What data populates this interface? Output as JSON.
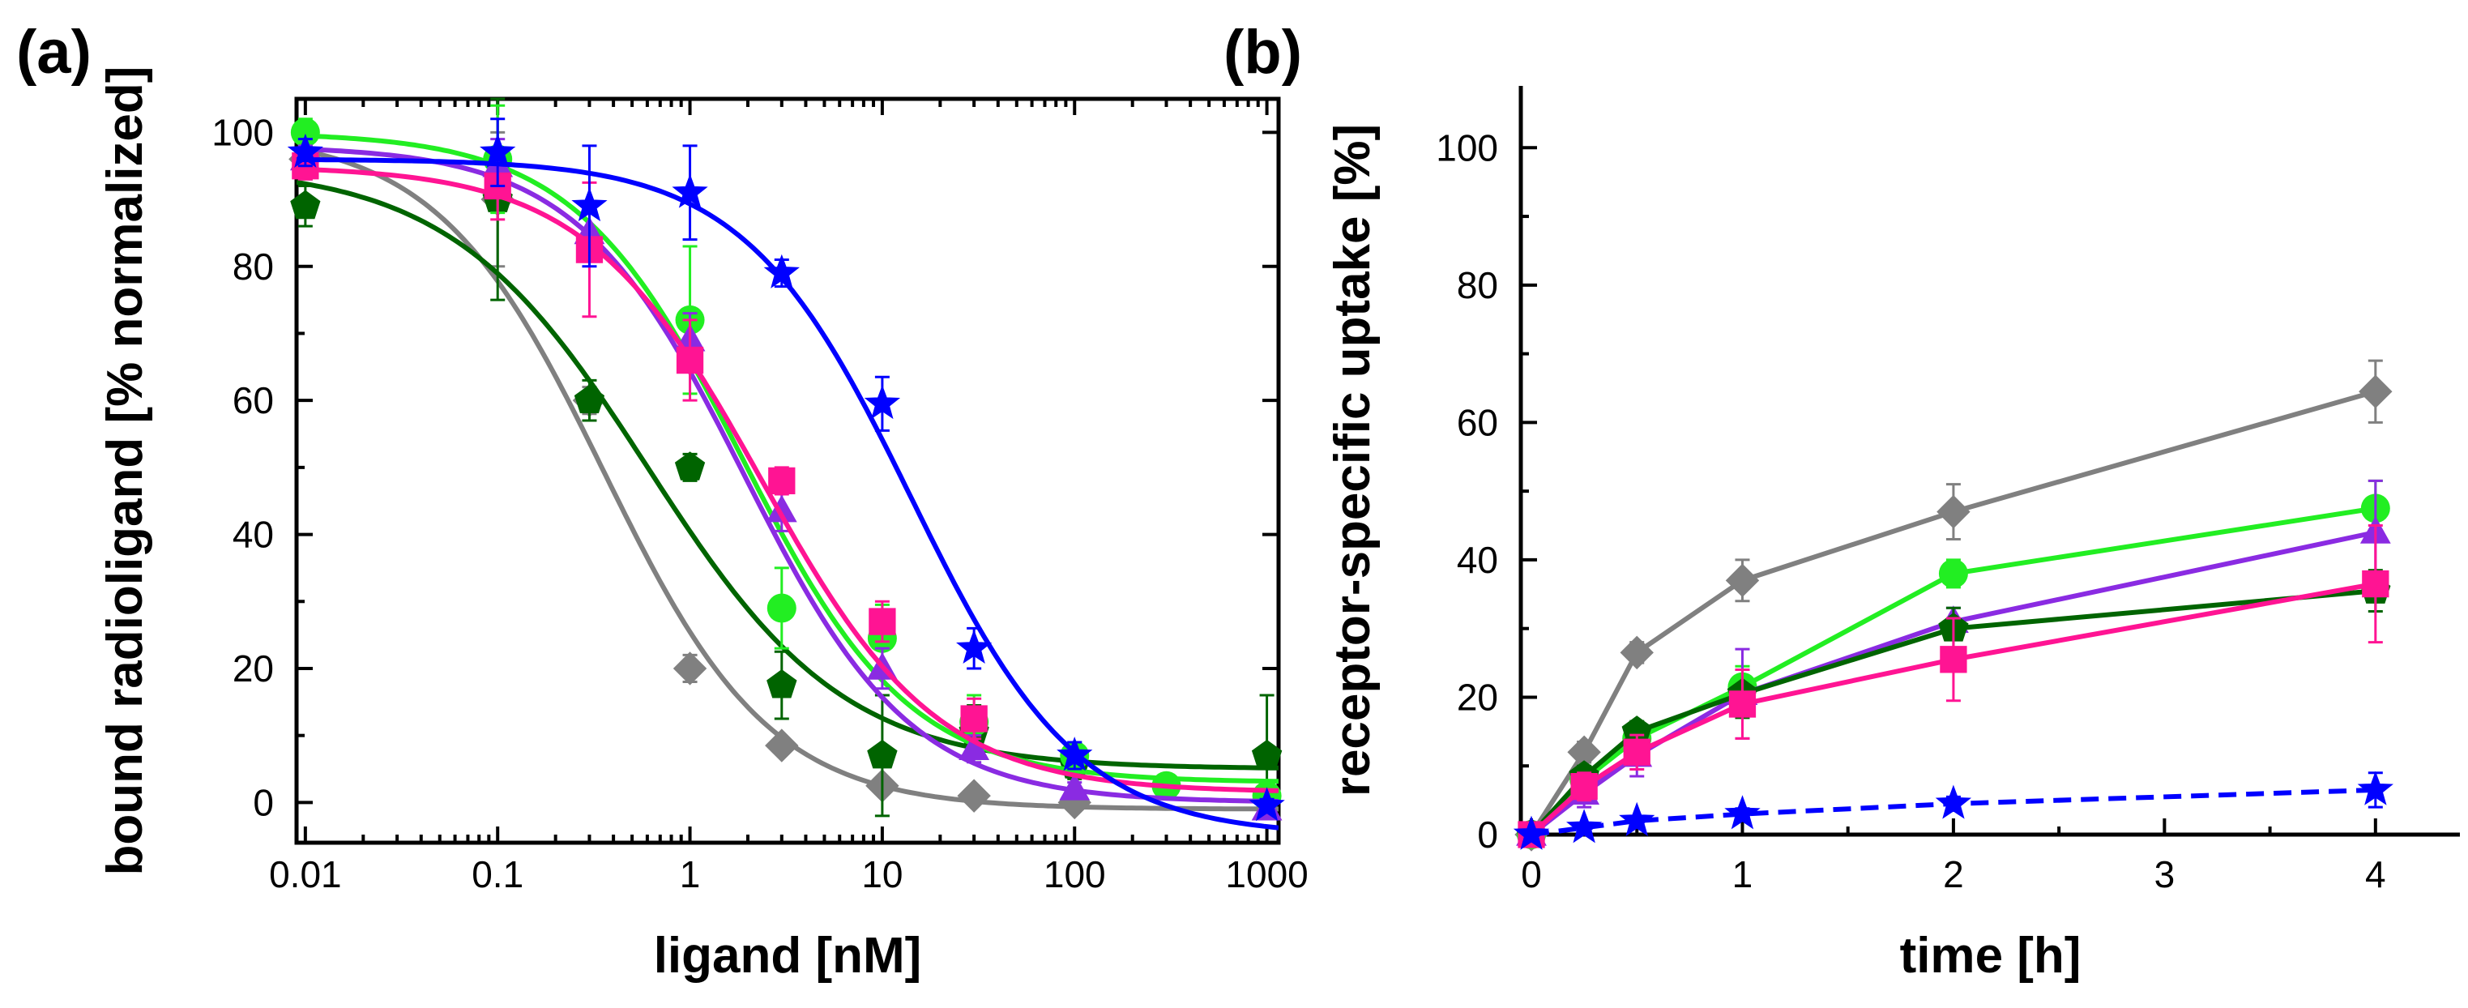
{
  "chart_data": [
    {
      "panel_label": "(a)",
      "type": "scatter",
      "title": "",
      "xlabel": "ligand [nM]",
      "ylabel": "bound radioligand [% normalized]",
      "xscale": "log",
      "xlim": [
        0.009,
        1150
      ],
      "ylim": [
        -6,
        105
      ],
      "xticks": [
        0.01,
        0.1,
        1,
        10,
        100,
        1000
      ],
      "xtick_labels": [
        "0.01",
        "0.1",
        "1",
        "10",
        "100",
        "1000"
      ],
      "yticks": [
        0,
        20,
        40,
        60,
        80,
        100
      ],
      "ytick_labels": [
        "0",
        "20",
        "40",
        "60",
        "80",
        "100"
      ],
      "grid": false,
      "legend": "none",
      "fit": "sigmoidal dose-response curves",
      "series": [
        {
          "name": "gray",
          "color": "#808080",
          "marker": "diamond",
          "x": [
            0.01,
            0.1,
            0.3,
            1,
            3,
            10,
            30,
            100
          ],
          "y": [
            96,
            90,
            60,
            20,
            8.5,
            2.5,
            1,
            0
          ],
          "err": [
            3,
            10,
            2,
            2,
            1,
            1,
            1,
            1
          ],
          "fit": {
            "top": 100,
            "bottom": -1,
            "logic50": -0.45,
            "hill": 1.0
          }
        },
        {
          "name": "dark-green",
          "color": "#006400",
          "marker": "pentagon",
          "x": [
            0.01,
            0.1,
            0.3,
            1,
            3,
            10,
            30,
            100,
            1000
          ],
          "y": [
            89,
            90,
            60,
            50,
            17.5,
            7,
            10.5,
            5.5,
            7
          ],
          "err": [
            3,
            15,
            3,
            2,
            5,
            9,
            4,
            2,
            9
          ],
          "fit": {
            "top": 95,
            "bottom": 5,
            "logic50": -0.22,
            "hill": 0.85
          }
        },
        {
          "name": "green",
          "color": "#22ee22",
          "marker": "circle",
          "x": [
            0.01,
            0.1,
            1,
            3,
            10,
            30,
            100,
            300,
            1000
          ],
          "y": [
            100,
            96,
            72,
            29,
            24.5,
            12,
            7,
            2.5,
            1
          ],
          "err": [
            2,
            8,
            11,
            6,
            5,
            4,
            2,
            1,
            2
          ],
          "fit": {
            "top": 100,
            "bottom": 3,
            "logic50": 0.27,
            "hill": 1.0
          }
        },
        {
          "name": "purple",
          "color": "#8a2be2",
          "marker": "triangle",
          "x": [
            0.01,
            0.1,
            0.3,
            1,
            3,
            10,
            30,
            100,
            1000
          ],
          "y": [
            96,
            95,
            85,
            69,
            43.5,
            20,
            8,
            2,
            -1
          ],
          "err": [
            2,
            4,
            4,
            4,
            3,
            3,
            2,
            1,
            1
          ],
          "fit": {
            "top": 98,
            "bottom": 0,
            "logic50": 0.28,
            "hill": 1.0
          }
        },
        {
          "name": "pink",
          "color": "#ff1493",
          "marker": "square",
          "x": [
            0.01,
            0.1,
            0.3,
            1,
            3,
            10,
            30
          ],
          "y": [
            95,
            92,
            82.5,
            66,
            48,
            27,
            12.5
          ],
          "err": [
            2,
            5,
            10,
            6,
            2,
            3,
            3
          ],
          "fit": {
            "top": 95,
            "bottom": 1.5,
            "logic50": 0.37,
            "hill": 0.95
          }
        },
        {
          "name": "blue",
          "color": "#0000ff",
          "marker": "star",
          "x": [
            0.01,
            0.1,
            0.3,
            1,
            3,
            10,
            30,
            100,
            1000
          ],
          "y": [
            97,
            97,
            89,
            91,
            79,
            59.5,
            23,
            7,
            -0.5
          ],
          "err": [
            2,
            5,
            9,
            7,
            2,
            4,
            3,
            2,
            1
          ],
          "fit": {
            "top": 96,
            "bottom": -5,
            "logic50": 1.15,
            "hill": 1.0
          }
        }
      ]
    },
    {
      "panel_label": "(b)",
      "type": "line",
      "title": "",
      "xlabel": "time [h]",
      "ylabel": "receptor-specific uptake [%]",
      "xlim": [
        -0.05,
        4.4
      ],
      "ylim": [
        0,
        109
      ],
      "xticks": [
        0,
        1,
        2,
        3,
        4
      ],
      "xtick_labels": [
        "0",
        "1",
        "2",
        "3",
        "4"
      ],
      "yticks": [
        0,
        20,
        40,
        60,
        80,
        100
      ],
      "ytick_labels": [
        "0",
        "20",
        "40",
        "60",
        "80",
        "100"
      ],
      "grid": false,
      "legend": "none",
      "series": [
        {
          "name": "gray",
          "color": "#808080",
          "marker": "diamond",
          "x": [
            0,
            0.25,
            0.5,
            1,
            2,
            4
          ],
          "y": [
            0,
            12,
            26.5,
            37,
            47,
            64.5
          ],
          "err": [
            0,
            1.5,
            1.5,
            3,
            4,
            4.5
          ]
        },
        {
          "name": "green",
          "color": "#22ee22",
          "marker": "circle",
          "x": [
            0,
            0.25,
            0.5,
            1,
            2,
            4
          ],
          "y": [
            0,
            8,
            14,
            21.5,
            38,
            47.5
          ],
          "err": [
            0,
            1.5,
            2,
            3,
            2,
            4
          ]
        },
        {
          "name": "purple",
          "color": "#8a2be2",
          "marker": "triangle",
          "x": [
            0,
            0.25,
            0.5,
            1,
            2,
            4
          ],
          "y": [
            0,
            6,
            11.5,
            20.5,
            31,
            44
          ],
          "err": [
            0,
            2,
            3,
            6.5,
            2,
            7.5
          ]
        },
        {
          "name": "dark-green",
          "color": "#006400",
          "marker": "pentagon",
          "x": [
            0,
            0.25,
            0.5,
            1,
            2,
            4
          ],
          "y": [
            0,
            8.5,
            15,
            20.5,
            30,
            35.5
          ],
          "err": [
            0,
            1.5,
            1.5,
            3.5,
            3,
            3
          ]
        },
        {
          "name": "pink",
          "color": "#ff1493",
          "marker": "square",
          "x": [
            0,
            0.25,
            0.5,
            1,
            2,
            4
          ],
          "y": [
            0,
            7,
            12,
            19,
            25.5,
            36.5
          ],
          "err": [
            0,
            2,
            2.5,
            5,
            6,
            8.5
          ]
        },
        {
          "name": "blue",
          "color": "#0000ff",
          "marker": "star",
          "dashed": true,
          "x": [
            0,
            0.25,
            0.5,
            1,
            2,
            4
          ],
          "y": [
            0,
            1,
            2,
            3,
            4.5,
            6.5
          ],
          "err": [
            0,
            0.5,
            0.5,
            0.8,
            1,
            2.5
          ]
        }
      ]
    }
  ]
}
